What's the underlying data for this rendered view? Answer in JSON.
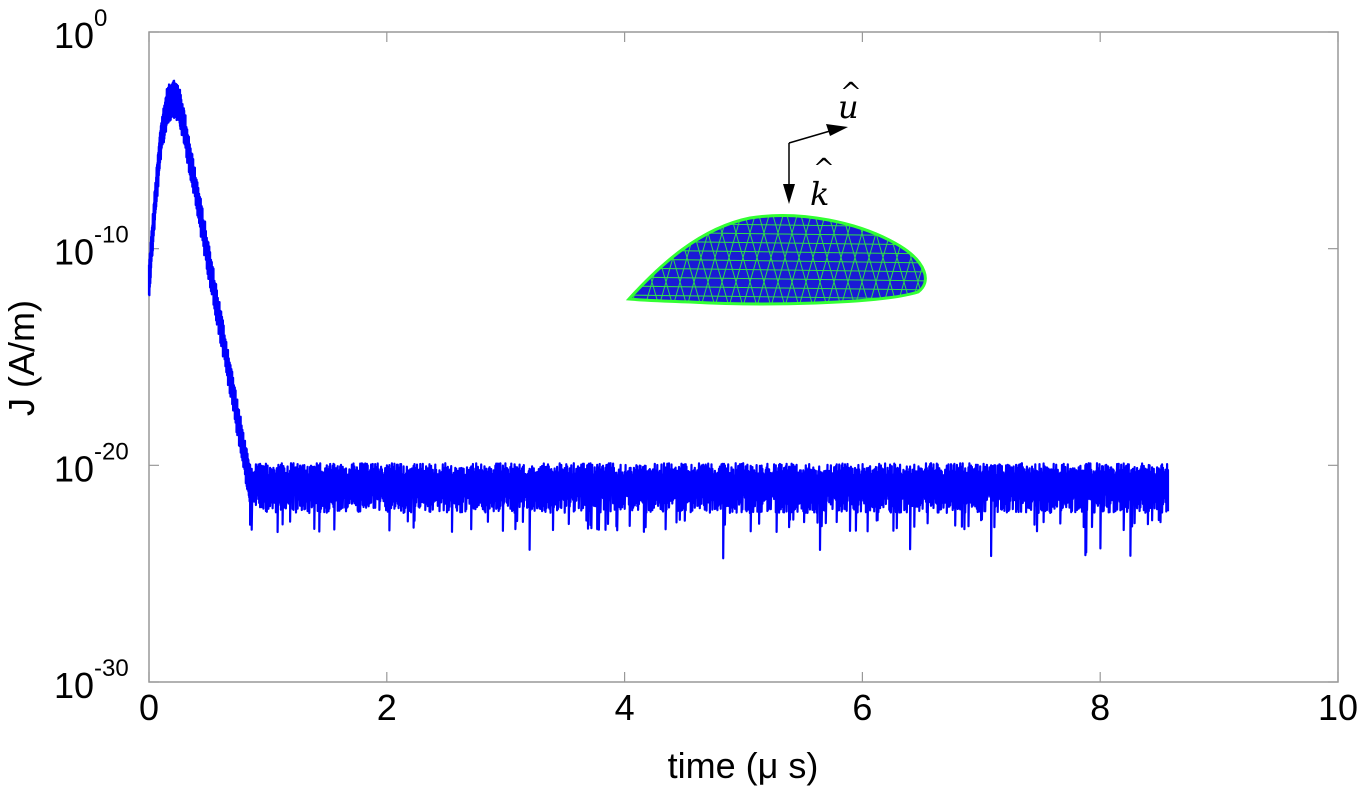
{
  "chart_data": {
    "type": "line",
    "title": "",
    "xlabel": "time (μ s)",
    "ylabel": "J (A/m)",
    "x_range": [
      0,
      10
    ],
    "x_ticks": [
      {
        "value": 0,
        "label": "0"
      },
      {
        "value": 2,
        "label": "2"
      },
      {
        "value": 4,
        "label": "4"
      },
      {
        "value": 6,
        "label": "6"
      },
      {
        "value": 8,
        "label": "8"
      },
      {
        "value": 10,
        "label": "10"
      }
    ],
    "y_scale": "log",
    "y_range_exponent": [
      -30,
      0
    ],
    "y_ticks": [
      {
        "exponent": 0,
        "base": "10",
        "exp": "0"
      },
      {
        "exponent": -10,
        "base": "10",
        "exp": "-10"
      },
      {
        "exponent": -20,
        "base": "10",
        "exp": "-20"
      },
      {
        "exponent": -30,
        "base": "10",
        "exp": "-30"
      }
    ],
    "grid": false,
    "series": [
      {
        "color": "#0000ff",
        "envelope_points": [
          {
            "x": 0.0,
            "log10_y": -11.5
          },
          {
            "x": 0.05,
            "log10_y": -8.0
          },
          {
            "x": 0.1,
            "log10_y": -5.0
          },
          {
            "x": 0.15,
            "log10_y": -3.5
          },
          {
            "x": 0.2,
            "log10_y": -3.0
          },
          {
            "x": 0.25,
            "log10_y": -3.3
          },
          {
            "x": 0.3,
            "log10_y": -4.5
          },
          {
            "x": 0.4,
            "log10_y": -7.5
          },
          {
            "x": 0.5,
            "log10_y": -10.5
          },
          {
            "x": 0.6,
            "log10_y": -13.5
          },
          {
            "x": 0.7,
            "log10_y": -16.5
          },
          {
            "x": 0.8,
            "log10_y": -19.5
          },
          {
            "x": 0.85,
            "log10_y": -21.0
          }
        ],
        "noise_floor": {
          "x_start": 0.85,
          "x_end": 8.57,
          "log10_y_center": -20.7,
          "log10_y_upper": -19.9,
          "log10_y_lower_typical": -22.5,
          "log10_y_lower_min": -24.3
        }
      }
    ],
    "annotations": [
      {
        "label": "u",
        "hat": "^",
        "meaning": "polarization vector"
      },
      {
        "label": "k",
        "hat": "^",
        "meaning": "incident direction"
      }
    ],
    "inset": {
      "description": "triangulated airfoil-like surface mesh",
      "fill_color": "#1a1ad6",
      "edge_color": "#33ff33"
    },
    "colors": {
      "axis": "#000000",
      "frame": "#999999",
      "series": "#0000ff"
    }
  }
}
